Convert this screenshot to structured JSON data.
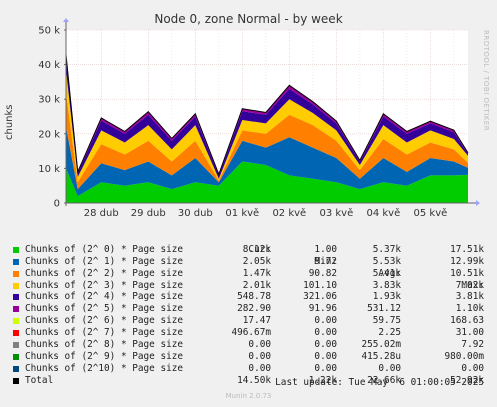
{
  "title": "Node 0, zone Normal - by week",
  "watermark": "RRDTOOL / TOBI OETIKER",
  "footer": "Munin 2.0.73",
  "last_update": "Last update: Tue May  6 01:00:05 2025",
  "legend_headers": {
    "cur": "Cur:",
    "min": "Min:",
    "avg": "Avg:",
    "max": "Max:"
  },
  "legend": [
    {
      "name": "Chunks of (2^ 0) * Page size",
      "color": "#00CC00",
      "cur": "8.12k",
      "min": "1.00",
      "avg": "5.37k",
      "max": "17.51k"
    },
    {
      "name": "Chunks of (2^ 1) * Page size",
      "color": "#0066B3",
      "cur": "2.05k",
      "min": "9.72",
      "avg": "5.53k",
      "max": "12.99k"
    },
    {
      "name": "Chunks of (2^ 2) * Page size",
      "color": "#FF8000",
      "cur": "1.47k",
      "min": "90.82",
      "avg": "5.41k",
      "max": "10.51k"
    },
    {
      "name": "Chunks of (2^ 3) * Page size",
      "color": "#FFCC00",
      "cur": "2.01k",
      "min": "101.10",
      "avg": "3.83k",
      "max": "7.02k"
    },
    {
      "name": "Chunks of (2^ 4) * Page size",
      "color": "#330099",
      "cur": "548.78",
      "min": "321.06",
      "avg": "1.93k",
      "max": "3.81k"
    },
    {
      "name": "Chunks of (2^ 5) * Page size",
      "color": "#990099",
      "cur": "282.90",
      "min": "91.96",
      "avg": "531.12",
      "max": "1.10k"
    },
    {
      "name": "Chunks of (2^ 6) * Page size",
      "color": "#CCFF00",
      "cur": "17.47",
      "min": "0.00",
      "avg": "59.75",
      "max": "168.63"
    },
    {
      "name": "Chunks of (2^ 7) * Page size",
      "color": "#FF0000",
      "cur": "496.67m",
      "min": "0.00",
      "avg": "2.25",
      "max": "31.00"
    },
    {
      "name": "Chunks of (2^ 8) * Page size",
      "color": "#808080",
      "cur": "0.00",
      "min": "0.00",
      "avg": "255.02m",
      "max": "7.92"
    },
    {
      "name": "Chunks of (2^ 9) * Page size",
      "color": "#008F00",
      "cur": "0.00",
      "min": "0.00",
      "avg": "415.28u",
      "max": "980.00m"
    },
    {
      "name": "Chunks of (2^10) * Page size",
      "color": "#00487D",
      "cur": "0.00",
      "min": "0.00",
      "avg": "0.00",
      "max": "0.00"
    },
    {
      "name": "Total",
      "color": "#000000",
      "cur": "14.50k",
      "min": "1.22k",
      "avg": "22.66k",
      "max": "52.92k"
    }
  ],
  "chart_data": {
    "type": "area",
    "stacked": true,
    "title": "Node 0, zone Normal - by week",
    "ylabel": "chunks",
    "ylim": [
      0,
      50000
    ],
    "yticks": [
      0,
      10000,
      20000,
      30000,
      40000,
      50000
    ],
    "ytick_labels": [
      "0",
      "10 k",
      "20 k",
      "30 k",
      "40 k",
      "50 k"
    ],
    "xtick_labels": [
      "28 dub",
      "29 dub",
      "30 dub",
      "01 kvě",
      "02 kvě",
      "03 kvě",
      "04 kvě",
      "05 kvě"
    ],
    "x_days": [
      -0.25,
      0,
      0.5,
      1,
      1.5,
      2,
      2.5,
      3,
      3.5,
      4,
      4.5,
      5,
      5.5,
      6,
      6.5,
      7,
      7.5,
      8,
      8.3
    ],
    "series": [
      {
        "name": "Chunks of (2^ 0) * Page size",
        "color": "#00CC00",
        "values": [
          10000,
          2000,
          6000,
          5000,
          6000,
          4000,
          6000,
          5000,
          12000,
          11000,
          8000,
          7000,
          6000,
          4000,
          6000,
          5000,
          8000,
          8000,
          8120
        ]
      },
      {
        "name": "Chunks of (2^ 1) * Page size",
        "color": "#0066B3",
        "values": [
          12000,
          2000,
          5500,
          4500,
          6000,
          4000,
          7000,
          1000,
          6000,
          5000,
          11000,
          9000,
          7000,
          3000,
          7000,
          4000,
          5000,
          4000,
          2050
        ]
      },
      {
        "name": "Chunks of (2^ 2) * Page size",
        "color": "#FF8000",
        "values": [
          10000,
          2000,
          5500,
          4500,
          6000,
          4000,
          5000,
          500,
          3000,
          4000,
          6500,
          6500,
          5000,
          2500,
          5500,
          5000,
          4500,
          3500,
          1470
        ]
      },
      {
        "name": "Chunks of (2^ 3) * Page size",
        "color": "#FFCC00",
        "values": [
          6500,
          1500,
          4000,
          3500,
          4500,
          3500,
          4500,
          500,
          3000,
          3000,
          4500,
          3500,
          3000,
          1500,
          4000,
          3500,
          3500,
          3000,
          2010
        ]
      },
      {
        "name": "Chunks of (2^ 4) * Page size",
        "color": "#330099",
        "values": [
          3500,
          1200,
          2800,
          2500,
          3000,
          2500,
          2500,
          1000,
          2500,
          2500,
          3000,
          2500,
          2000,
          1000,
          2500,
          2500,
          2000,
          2000,
          549
        ]
      },
      {
        "name": "Chunks of (2^ 5) * Page size",
        "color": "#990099",
        "values": [
          800,
          300,
          700,
          600,
          800,
          600,
          700,
          300,
          700,
          600,
          900,
          700,
          600,
          300,
          700,
          600,
          600,
          500,
          283
        ]
      },
      {
        "name": "Chunks of (2^ 6) * Page size",
        "color": "#CCFF00",
        "values": [
          100,
          20,
          80,
          60,
          90,
          60,
          80,
          10,
          70,
          60,
          100,
          80,
          60,
          20,
          80,
          60,
          60,
          50,
          17
        ]
      },
      {
        "name": "Chunks of (2^ 7) * Page size",
        "color": "#FF0000",
        "values": [
          10,
          0,
          5,
          3,
          5,
          3,
          4,
          0,
          4,
          3,
          6,
          4,
          3,
          0,
          4,
          3,
          3,
          2,
          0.5
        ]
      },
      {
        "name": "Chunks of (2^ 8) * Page size",
        "color": "#808080",
        "values": [
          0,
          0,
          0,
          0,
          0,
          0,
          0,
          0,
          0,
          0,
          0,
          0,
          0,
          0,
          0,
          0,
          0,
          0,
          0
        ]
      },
      {
        "name": "Chunks of (2^ 9) * Page size",
        "color": "#008F00",
        "values": [
          0,
          0,
          0,
          0,
          0,
          0,
          0,
          0,
          0,
          0,
          0,
          0,
          0,
          0,
          0,
          0,
          0,
          0,
          0
        ]
      },
      {
        "name": "Chunks of (2^10) * Page size",
        "color": "#00487D",
        "values": [
          0,
          0,
          0,
          0,
          0,
          0,
          0,
          0,
          0,
          0,
          0,
          0,
          0,
          0,
          0,
          0,
          0,
          0,
          0
        ]
      }
    ],
    "grid": true
  }
}
